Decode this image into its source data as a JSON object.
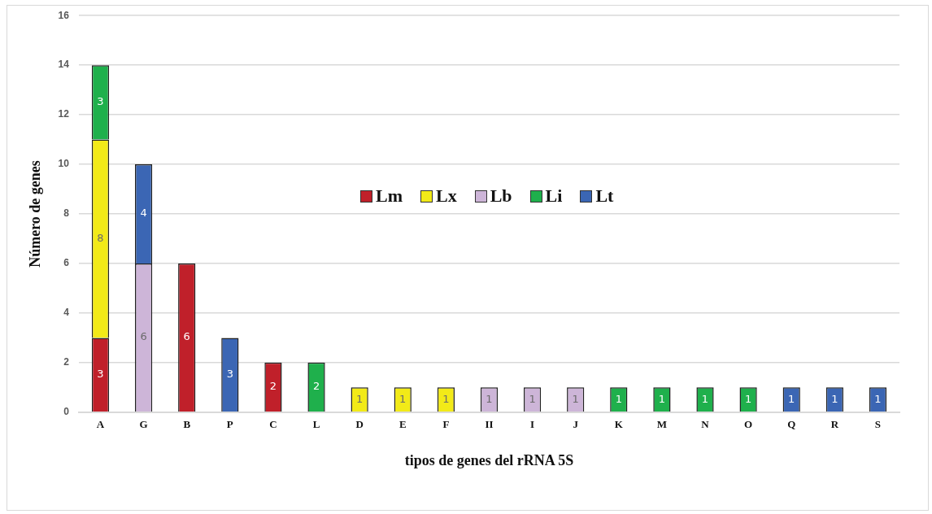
{
  "chart_data": {
    "type": "bar",
    "stacked": true,
    "xlabel": "tipos de genes del rRNA 5S",
    "ylabel": "Número de genes",
    "categories": [
      "A",
      "G",
      "B",
      "P",
      "C",
      "L",
      "D",
      "E",
      "F",
      "II",
      "I",
      "J",
      "K",
      "M",
      "N",
      "O",
      "Q",
      "R",
      "S"
    ],
    "series": [
      {
        "name": "Lm",
        "color": "#c0202a",
        "values": [
          3,
          null,
          6,
          null,
          2,
          null,
          null,
          null,
          null,
          null,
          null,
          null,
          null,
          null,
          null,
          null,
          null,
          null,
          null
        ]
      },
      {
        "name": "Lx",
        "color": "#f2ea18",
        "values": [
          8,
          null,
          null,
          null,
          null,
          null,
          1,
          1,
          1,
          null,
          null,
          null,
          null,
          null,
          null,
          null,
          null,
          null,
          null
        ]
      },
      {
        "name": "Lb",
        "color": "#cdb5d8",
        "values": [
          null,
          6,
          null,
          null,
          null,
          null,
          null,
          null,
          null,
          1,
          1,
          1,
          null,
          null,
          null,
          null,
          null,
          null,
          null
        ]
      },
      {
        "name": "Li",
        "color": "#1fb04c",
        "values": [
          3,
          null,
          null,
          null,
          null,
          2,
          null,
          null,
          null,
          null,
          null,
          null,
          1,
          1,
          1,
          1,
          null,
          null,
          null
        ]
      },
      {
        "name": "Lt",
        "color": "#3b66b4",
        "values": [
          null,
          4,
          null,
          3,
          null,
          null,
          null,
          null,
          null,
          null,
          null,
          null,
          null,
          null,
          null,
          null,
          1,
          1,
          1
        ]
      }
    ],
    "ylim": [
      0,
      16
    ],
    "yticks": [
      0,
      2,
      4,
      6,
      8,
      10,
      12,
      14,
      16
    ],
    "grid": "y",
    "legend": "top",
    "data_labels": true
  }
}
